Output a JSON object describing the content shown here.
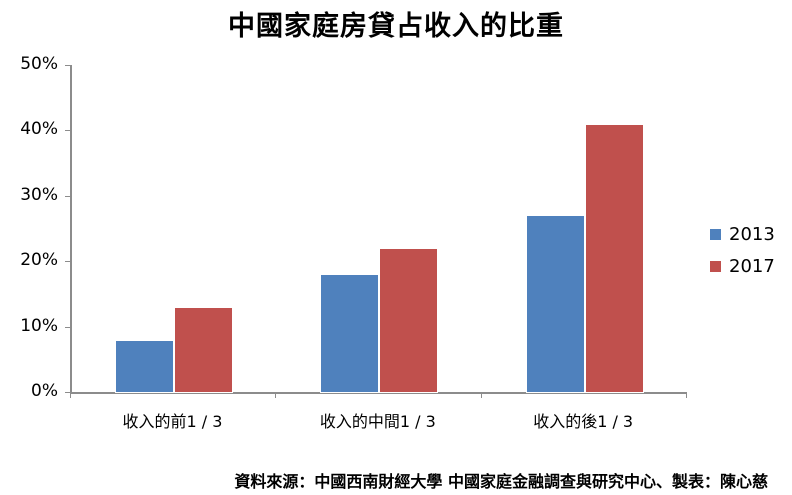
{
  "title": "中國家庭房貸占收入的比重",
  "footer": "資料來源：中國西南財經大學  中國家庭金融調查與研究中心、製表：陳心慈",
  "colors": {
    "2013": "#4f81bd",
    "2017": "#c0504d",
    "axis": "#8c8c8c"
  },
  "legend": [
    {
      "label": "2013",
      "color": "#4f81bd"
    },
    {
      "label": "2017",
      "color": "#c0504d"
    }
  ],
  "y_ticks": [
    "50%",
    "40%",
    "30%",
    "20%",
    "10%",
    "0%"
  ],
  "x_labels": [
    "收入的前1 / 3",
    "收入的中間1 / 3",
    "收入的後1 / 3"
  ],
  "chart_data": {
    "type": "bar",
    "title": "中國家庭房貸占收入的比重",
    "categories": [
      "收入的前1 / 3",
      "收入的中間1 / 3",
      "收入的後1 / 3"
    ],
    "series": [
      {
        "name": "2013",
        "values": [
          8,
          18,
          27
        ],
        "color": "#4f81bd"
      },
      {
        "name": "2017",
        "values": [
          13,
          22,
          41
        ],
        "color": "#c0504d"
      }
    ],
    "xlabel": "",
    "ylabel": "",
    "y_unit": "%",
    "ylim": [
      0,
      50
    ],
    "y_ticks": [
      0,
      10,
      20,
      30,
      40,
      50
    ],
    "grid": false,
    "legend_position": "right",
    "annotation": "資料來源：中國西南財經大學  中國家庭金融調查與研究中心、製表：陳心慈"
  }
}
